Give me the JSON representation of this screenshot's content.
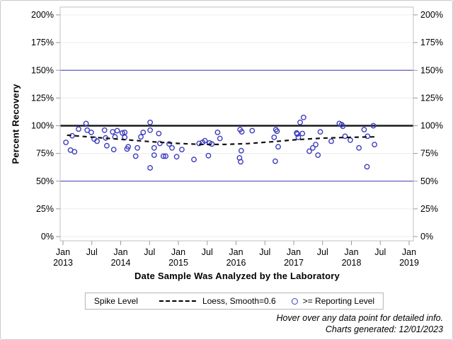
{
  "chart_data": {
    "type": "scatter",
    "title": "",
    "xlabel": "Date Sample Was Analyzed by the Laboratory",
    "ylabel": "Percent Recovery",
    "xlim_years": [
      2013.0,
      2019.0
    ],
    "ylim": [
      0,
      200
    ],
    "grid": true,
    "legend_position": "bottom",
    "y_ticks": [
      {
        "value": 0,
        "label": "0%"
      },
      {
        "value": 25,
        "label": "25%"
      },
      {
        "value": 50,
        "label": "50%"
      },
      {
        "value": 75,
        "label": "75%"
      },
      {
        "value": 100,
        "label": "100%"
      },
      {
        "value": 125,
        "label": "125%"
      },
      {
        "value": 150,
        "label": "150%"
      },
      {
        "value": 175,
        "label": "175%"
      },
      {
        "value": 200,
        "label": "200%"
      }
    ],
    "x_ticks": [
      {
        "year": 2013.0,
        "line1": "Jan",
        "line2": "2013"
      },
      {
        "year": 2013.5,
        "line1": "Jul",
        "line2": ""
      },
      {
        "year": 2014.0,
        "line1": "Jan",
        "line2": "2014"
      },
      {
        "year": 2014.5,
        "line1": "Jul",
        "line2": ""
      },
      {
        "year": 2015.0,
        "line1": "Jan",
        "line2": "2015"
      },
      {
        "year": 2015.5,
        "line1": "Jul",
        "line2": ""
      },
      {
        "year": 2016.0,
        "line1": "Jan",
        "line2": "2016"
      },
      {
        "year": 2016.5,
        "line1": "Jul",
        "line2": ""
      },
      {
        "year": 2017.0,
        "line1": "Jan",
        "line2": "2017"
      },
      {
        "year": 2017.5,
        "line1": "Jul",
        "line2": ""
      },
      {
        "year": 2018.0,
        "line1": "Jan",
        "line2": "2018"
      },
      {
        "year": 2018.5,
        "line1": "Jul",
        "line2": ""
      },
      {
        "year": 2019.0,
        "line1": "Jan",
        "line2": "2019"
      }
    ],
    "reference_lines": [
      {
        "name": "upper-limit-150",
        "value": 150,
        "color": "#5c5cc6",
        "width": 1.2
      },
      {
        "name": "spike-level-100",
        "value": 100,
        "color": "#1a1a1a",
        "width": 2.6
      },
      {
        "name": "lower-limit-50",
        "value": 50,
        "color": "#5c5cc6",
        "width": 1.2
      }
    ],
    "series": [
      {
        "name": ">= Reporting Level",
        "type": "scatter",
        "marker": "open-circle",
        "color": "#3c3cbe",
        "points": [
          [
            2013.05,
            85
          ],
          [
            2013.13,
            78
          ],
          [
            2013.16,
            91
          ],
          [
            2013.2,
            76.5
          ],
          [
            2013.27,
            97
          ],
          [
            2013.4,
            102
          ],
          [
            2013.42,
            96
          ],
          [
            2013.49,
            94
          ],
          [
            2013.54,
            88
          ],
          [
            2013.59,
            86
          ],
          [
            2013.72,
            96
          ],
          [
            2013.74,
            89
          ],
          [
            2013.76,
            82
          ],
          [
            2013.86,
            94.5
          ],
          [
            2013.88,
            78.5
          ],
          [
            2013.9,
            90
          ],
          [
            2013.94,
            95.5
          ],
          [
            2014.03,
            93.5
          ],
          [
            2014.07,
            94
          ],
          [
            2014.07,
            89.5
          ],
          [
            2014.11,
            79
          ],
          [
            2014.13,
            81
          ],
          [
            2014.26,
            72.5
          ],
          [
            2014.29,
            80
          ],
          [
            2014.35,
            90
          ],
          [
            2014.39,
            94
          ],
          [
            2014.51,
            103
          ],
          [
            2014.51,
            96
          ],
          [
            2014.51,
            62
          ],
          [
            2014.58,
            80
          ],
          [
            2014.58,
            73.5
          ],
          [
            2014.66,
            93
          ],
          [
            2014.68,
            84
          ],
          [
            2014.74,
            72.5
          ],
          [
            2014.78,
            72.5
          ],
          [
            2014.84,
            83.5
          ],
          [
            2014.89,
            80
          ],
          [
            2014.97,
            72
          ],
          [
            2015.06,
            78.5
          ],
          [
            2015.27,
            69.5
          ],
          [
            2015.36,
            84
          ],
          [
            2015.42,
            85
          ],
          [
            2015.46,
            86.5
          ],
          [
            2015.52,
            73
          ],
          [
            2015.54,
            84.5
          ],
          [
            2015.58,
            83.5
          ],
          [
            2015.68,
            94
          ],
          [
            2015.72,
            88.5
          ],
          [
            2016.06,
            71
          ],
          [
            2016.07,
            96.5
          ],
          [
            2016.08,
            67.5
          ],
          [
            2016.09,
            77.5
          ],
          [
            2016.1,
            94.5
          ],
          [
            2016.28,
            95.5
          ],
          [
            2016.66,
            89.5
          ],
          [
            2016.68,
            68
          ],
          [
            2016.69,
            96.5
          ],
          [
            2016.71,
            95
          ],
          [
            2016.73,
            81
          ],
          [
            2017.05,
            93.5
          ],
          [
            2017.06,
            92.5
          ],
          [
            2017.08,
            89.5
          ],
          [
            2017.11,
            103
          ],
          [
            2017.15,
            93
          ],
          [
            2017.17,
            107.5
          ],
          [
            2017.27,
            77
          ],
          [
            2017.33,
            80
          ],
          [
            2017.38,
            83
          ],
          [
            2017.42,
            73.5
          ],
          [
            2017.46,
            94.5
          ],
          [
            2017.65,
            86
          ],
          [
            2017.79,
            102
          ],
          [
            2017.83,
            101
          ],
          [
            2017.85,
            99.5
          ],
          [
            2017.89,
            90.5
          ],
          [
            2017.98,
            87
          ],
          [
            2018.13,
            80
          ],
          [
            2018.22,
            96.5
          ],
          [
            2018.27,
            63
          ],
          [
            2018.28,
            90.5
          ],
          [
            2018.38,
            100
          ],
          [
            2018.4,
            83
          ]
        ]
      },
      {
        "name": "Loess, Smooth=0.6",
        "type": "line",
        "style": "dashed",
        "color": "#111111",
        "points": [
          [
            2013.07,
            91.5
          ],
          [
            2013.5,
            89.7
          ],
          [
            2014.0,
            87.7
          ],
          [
            2014.5,
            85.7
          ],
          [
            2015.0,
            84.0
          ],
          [
            2015.4,
            83.1
          ],
          [
            2015.8,
            83.1
          ],
          [
            2016.2,
            83.9
          ],
          [
            2016.6,
            85.4
          ],
          [
            2017.0,
            87.2
          ],
          [
            2017.5,
            88.8
          ],
          [
            2018.0,
            89.6
          ],
          [
            2018.4,
            90.0
          ]
        ]
      }
    ]
  },
  "legend": {
    "title": "Spike Level",
    "loess_label": "Loess, Smooth=0.6",
    "marker_label": ">= Reporting Level"
  },
  "footer": {
    "line1": "Hover over any data point for detailed info.",
    "line2": "Charts generated: 12/01/2023"
  },
  "colors": {
    "marker": "#3c3cbe",
    "limit_line": "#5c5cc6",
    "spike_line": "#1a1a1a",
    "gridline": "#ececec",
    "frame": "#c2c2c2",
    "tick": "#9a9a9a"
  }
}
